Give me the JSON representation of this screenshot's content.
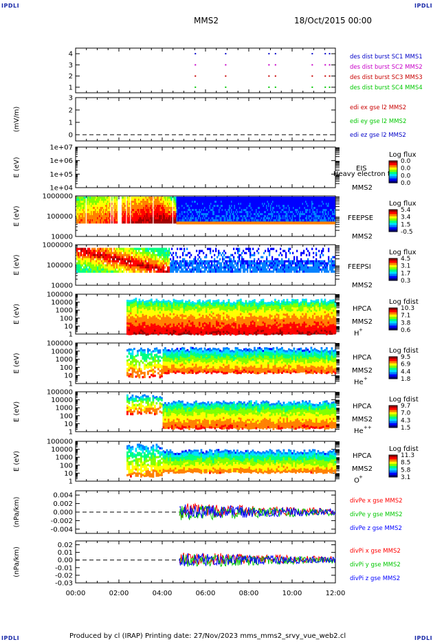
{
  "header": {
    "corner_label": "IPDLI",
    "spacecraft": "MMS2",
    "date": "18/Oct/2015 00:00"
  },
  "footer": {
    "text": "Produced by cl (IRAP)   Printing date: 27/Nov/2023   mms_mms2_srvy_vue_web2.cl"
  },
  "colors": {
    "spectrogram_scale": [
      "#000080",
      "#0000ff",
      "#0080ff",
      "#00e0ff",
      "#00ff80",
      "#80ff00",
      "#ffff00",
      "#ff8000",
      "#ff0000",
      "#a00000"
    ],
    "sc1": "#0000c8",
    "sc2": "#c800c8",
    "sc3": "#c80000",
    "sc4": "#00c800",
    "x_component": "#ff0000",
    "y_component": "#00c800",
    "z_component": "#0000ff"
  },
  "chart_data": {
    "type": "multi-panel time series and spectrograms",
    "x_axis": {
      "range": [
        "00:00",
        "12:00"
      ],
      "tick_labels": [
        "00:00",
        "02:00",
        "04:00",
        "06:00",
        "08:00",
        "10:00",
        "12:00"
      ]
    },
    "panels": [
      {
        "id": "burst",
        "type": "scatter",
        "ylim": [
          0.5,
          4.5
        ],
        "yticks": [
          "1",
          "2",
          "3",
          "4"
        ],
        "ylabel": "",
        "legend": [
          {
            "label": "des dist burst SC1 MMS1",
            "color": "#0000c8"
          },
          {
            "label": "des dist burst SC2 MMS2",
            "color": "#c800c8"
          },
          {
            "label": "des dist burst SC3 MMS3",
            "color": "#c80000"
          },
          {
            "label": "des dist burst SC4 MMS4",
            "color": "#00c800"
          }
        ],
        "marks_hours": [
          5.5,
          6.9,
          8.9,
          9.2,
          10.9,
          11.5,
          11.7
        ]
      },
      {
        "id": "edi",
        "type": "line",
        "ylabel": "(mV/m)",
        "ylim": [
          -0.5,
          3
        ],
        "yticks": [
          "0",
          "1",
          "2",
          "3"
        ],
        "legend": [
          {
            "label": "edi ex gse l2 MMS2",
            "color": "#c80000"
          },
          {
            "label": "edi ey gse l2 MMS2",
            "color": "#00c800"
          },
          {
            "label": "edi ez gse l2 MMS2",
            "color": "#0000c8"
          }
        ]
      },
      {
        "id": "eis",
        "type": "heatmap",
        "ylabel": "E (eV)",
        "ylim": [
          "1e+04",
          "1e+07"
        ],
        "yticks": [
          "1e+07",
          "1e+06",
          "1e+05",
          "1e+04"
        ],
        "instrument": "EIS",
        "species_text": "Heavy electron to",
        "spacecraft": "MMS2",
        "colorbar": {
          "title": "Log flux",
          "ticks": [
            "0.0",
            "0.0",
            "0.0",
            "0.0"
          ]
        }
      },
      {
        "id": "feepse",
        "type": "heatmap",
        "ylabel": "E (eV)",
        "ylim": [
          10000,
          1000000
        ],
        "yticks": [
          "1000000",
          "100000",
          "10000"
        ],
        "instrument": "FEEPSE",
        "spacecraft": "MMS2",
        "colorbar": {
          "title": "Log flux",
          "ticks": [
            "5.4",
            "3.4",
            "1.5",
            "-0.5"
          ]
        }
      },
      {
        "id": "feepsi",
        "type": "heatmap",
        "ylabel": "E (eV)",
        "ylim": [
          10000,
          1000000
        ],
        "yticks": [
          "1000000",
          "100000",
          "10000"
        ],
        "instrument": "FEEPSI",
        "spacecraft": "MMS2",
        "colorbar": {
          "title": "Log flux",
          "ticks": [
            "4.5",
            "3.1",
            "1.7",
            "0.3"
          ]
        }
      },
      {
        "id": "hpca_h",
        "type": "heatmap",
        "ylabel": "E (eV)",
        "ylim": [
          1,
          100000
        ],
        "yticks": [
          "100000",
          "10000",
          "1000",
          "100",
          "10",
          "1"
        ],
        "instrument": "HPCA",
        "spacecraft": "MMS2",
        "species": "H",
        "charge": "+",
        "colorbar": {
          "title": "Log fdist",
          "ticks": [
            "10.3",
            "7.1",
            "3.8",
            "0.6"
          ]
        }
      },
      {
        "id": "hpca_he",
        "type": "heatmap",
        "ylabel": "E (eV)",
        "ylim": [
          1,
          100000
        ],
        "yticks": [
          "100000",
          "10000",
          "1000",
          "100",
          "10",
          "1"
        ],
        "instrument": "HPCA",
        "spacecraft": "MMS2",
        "species": "He",
        "charge": "+",
        "colorbar": {
          "title": "Log fdist",
          "ticks": [
            "9.5",
            "6.9",
            "4.4",
            "1.8"
          ]
        }
      },
      {
        "id": "hpca_he2",
        "type": "heatmap",
        "ylabel": "E (eV)",
        "ylim": [
          1,
          100000
        ],
        "yticks": [
          "100000",
          "10000",
          "1000",
          "100",
          "10",
          "1"
        ],
        "instrument": "HPCA",
        "spacecraft": "MMS2",
        "species": "He",
        "charge": "++",
        "colorbar": {
          "title": "Log fdist",
          "ticks": [
            "9.7",
            "7.0",
            "4.3",
            "1.5"
          ]
        }
      },
      {
        "id": "hpca_o",
        "type": "heatmap",
        "ylabel": "E (eV)",
        "ylim": [
          1,
          100000
        ],
        "yticks": [
          "100000",
          "10000",
          "1000",
          "100",
          "10",
          "1"
        ],
        "instrument": "HPCA",
        "spacecraft": "MMS2",
        "species": "O",
        "charge": "+",
        "colorbar": {
          "title": "Log fdist",
          "ticks": [
            "11.3",
            "8.5",
            "5.8",
            "3.1"
          ]
        }
      },
      {
        "id": "divpe",
        "type": "line",
        "ylabel": "(nPa/km)",
        "ylim": [
          -0.005,
          0.005
        ],
        "yticks": [
          "0.004",
          "0.002",
          "0.000",
          "-0.002",
          "-0.004"
        ],
        "legend": [
          {
            "label": "divPe x gse MMS2",
            "color": "#ff0000"
          },
          {
            "label": "divPe y gse MMS2",
            "color": "#00c800"
          },
          {
            "label": "divPe z gse MMS2",
            "color": "#0000ff"
          }
        ],
        "data_start_hour": 4.8
      },
      {
        "id": "divpi",
        "type": "line",
        "ylabel": "(nPa/km)",
        "ylim": [
          -0.03,
          0.025
        ],
        "yticks": [
          "0.02",
          "0.01",
          "0.00",
          "-0.01",
          "-0.02",
          "-0.03"
        ],
        "legend": [
          {
            "label": "divPi x gse MMS2",
            "color": "#ff0000"
          },
          {
            "label": "divPi y gse MMS2",
            "color": "#00c800"
          },
          {
            "label": "divPi z gse MMS2",
            "color": "#0000ff"
          }
        ],
        "data_start_hour": 4.8
      }
    ]
  }
}
